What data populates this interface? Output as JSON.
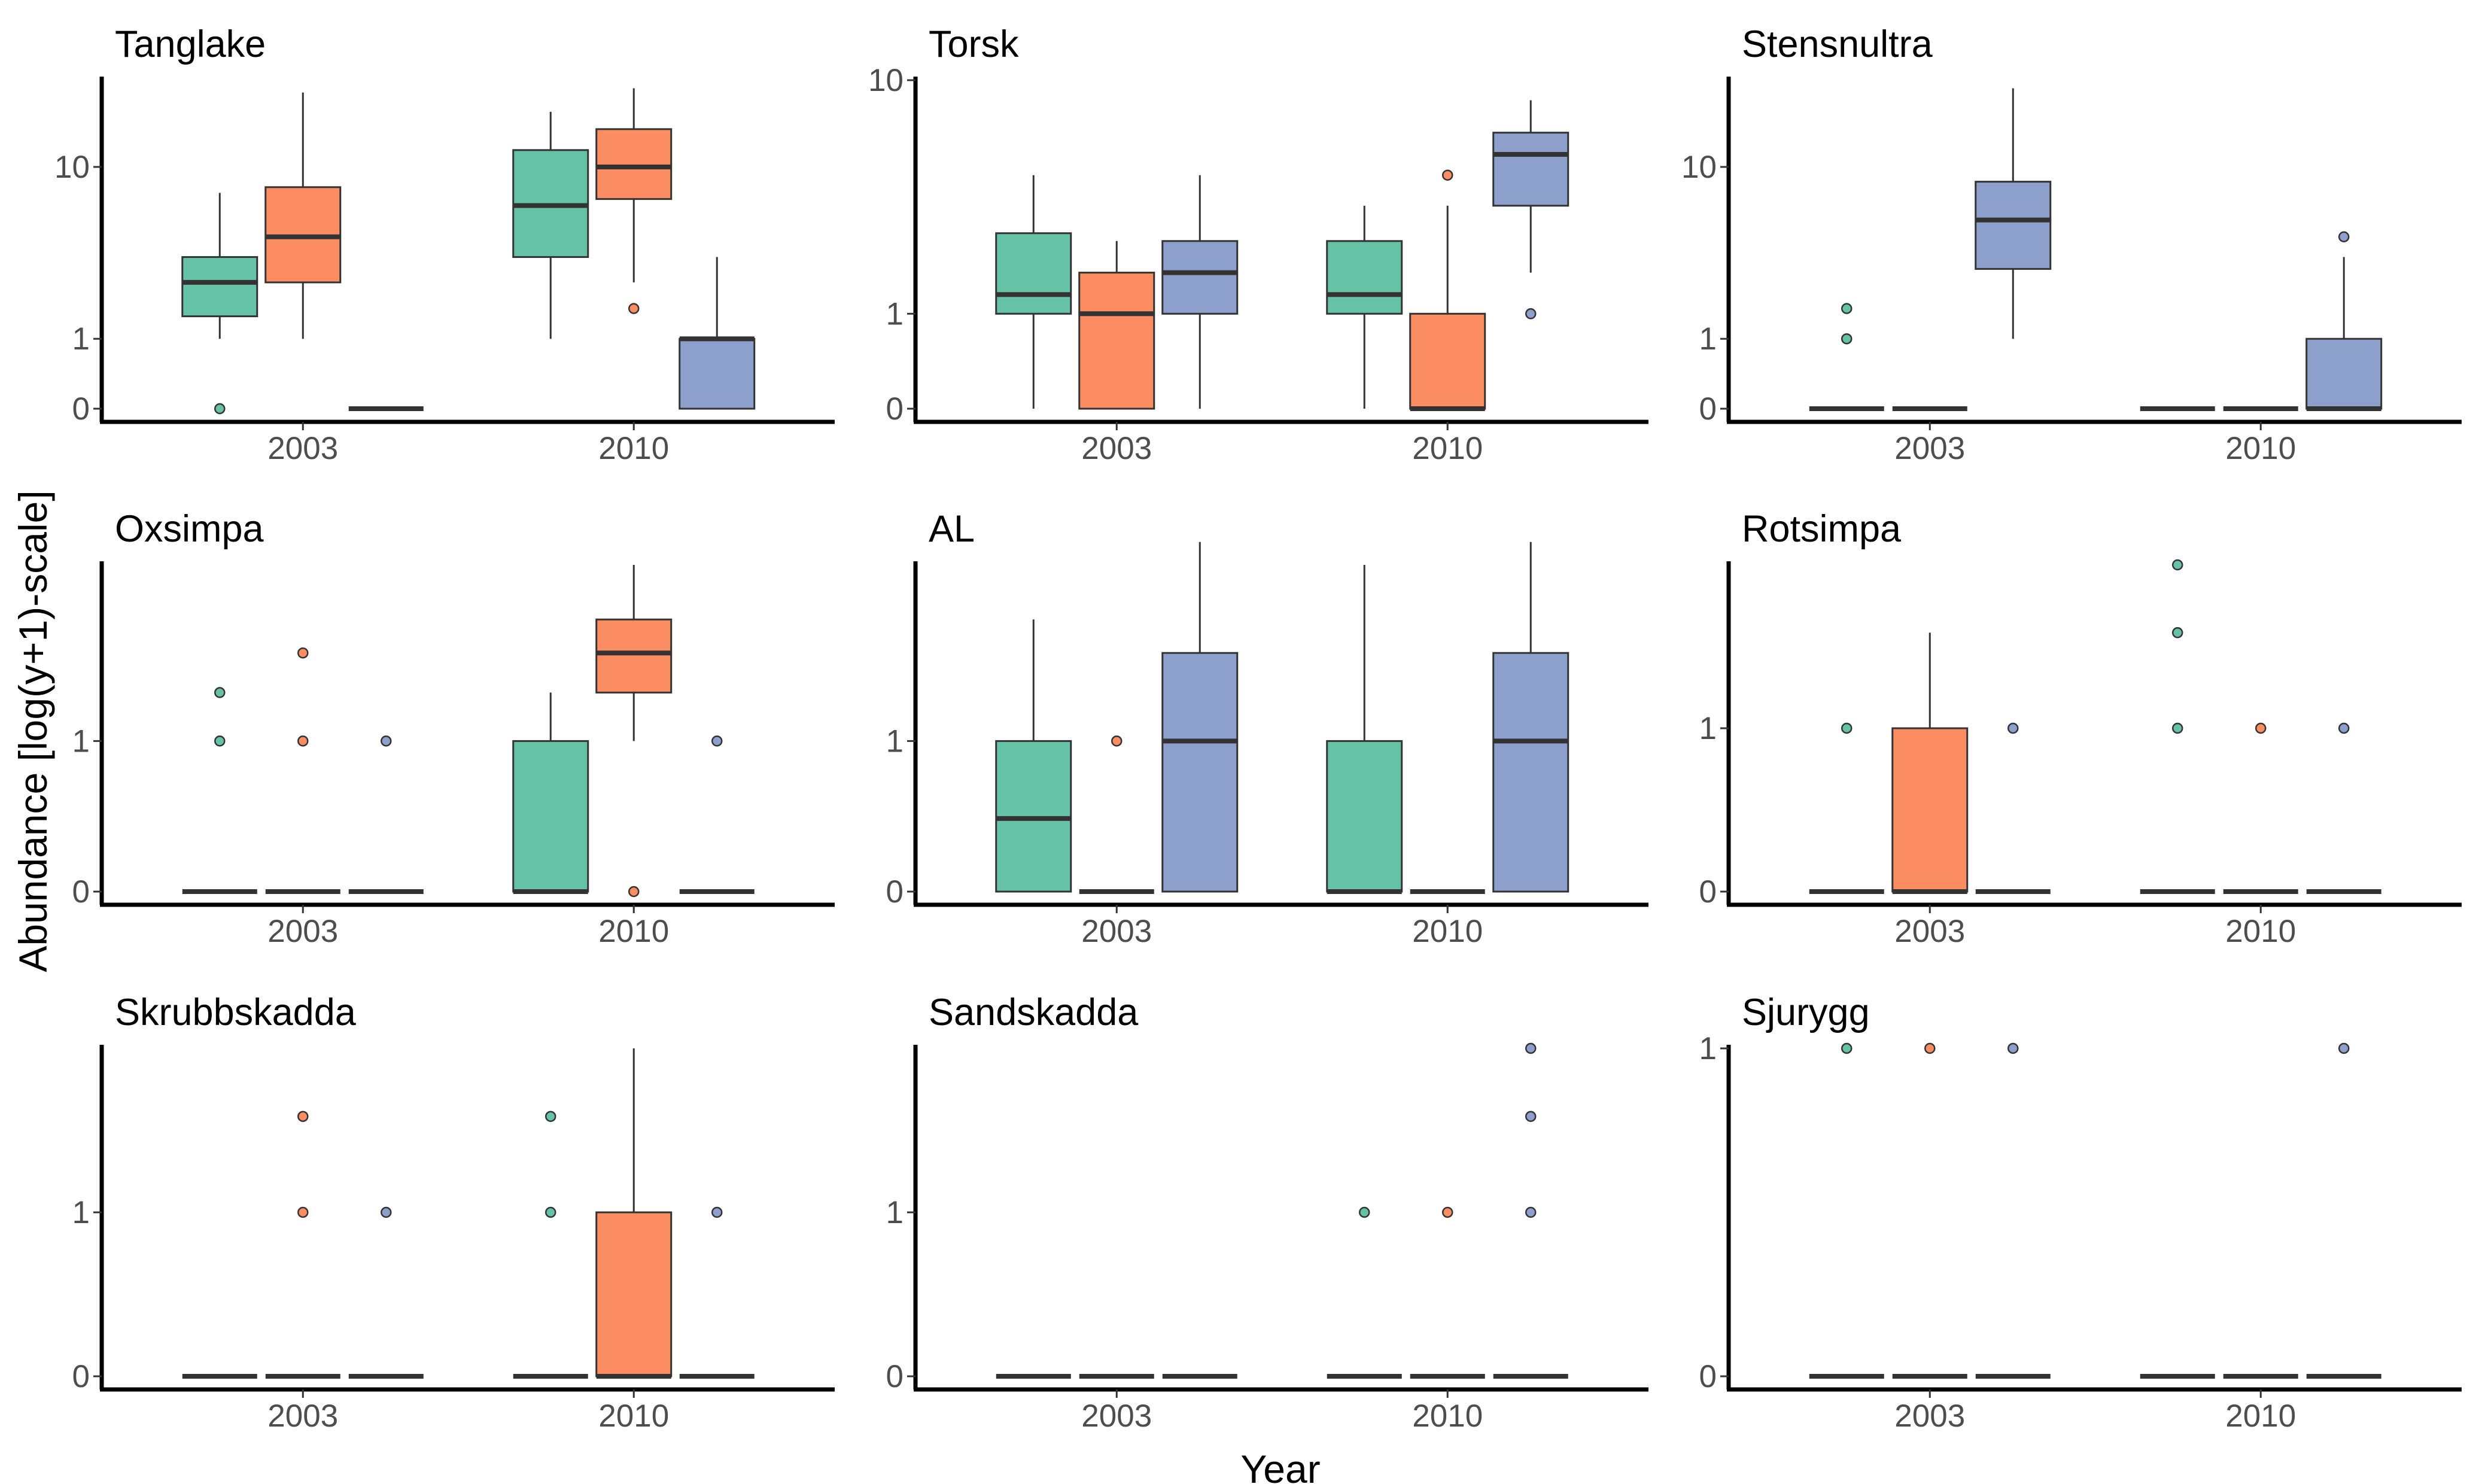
{
  "figure": {
    "ylabel": "Abundance [log(y+1)-scale]",
    "xlabel": "Year"
  },
  "colors": {
    "g1": "#66C2A5",
    "g2": "#FC8D62",
    "g3": "#8DA0CB"
  },
  "chart_data": [
    {
      "type": "box",
      "title": "Tanglake",
      "categories": [
        "2003",
        "2010"
      ],
      "yscale": "log1p",
      "ylim": [
        0,
        25
      ],
      "yticks": [
        "0",
        "1",
        "10"
      ],
      "groups": [
        {
          "year": "2003",
          "series": "g1",
          "min": 1,
          "q1": 1.5,
          "median": 2.5,
          "q3": 3.5,
          "max": 7.5,
          "outliers": [
            0
          ]
        },
        {
          "year": "2003",
          "series": "g2",
          "min": 1,
          "q1": 2.5,
          "median": 4.5,
          "q3": 8,
          "max": 22,
          "outliers": []
        },
        {
          "year": "2003",
          "series": "g3",
          "min": 0,
          "q1": 0,
          "median": 0,
          "q3": 0,
          "max": 0,
          "outliers": []
        },
        {
          "year": "2010",
          "series": "g1",
          "min": 1,
          "q1": 3.5,
          "median": 6.5,
          "q3": 12,
          "max": 18,
          "outliers": []
        },
        {
          "year": "2010",
          "series": "g2",
          "min": 2.5,
          "q1": 7,
          "median": 10,
          "q3": 15,
          "max": 23,
          "outliers": [
            1.7
          ]
        },
        {
          "year": "2010",
          "series": "g3",
          "min": 0,
          "q1": 0,
          "median": 1,
          "q3": 1,
          "max": 3.5,
          "outliers": []
        }
      ]
    },
    {
      "type": "box",
      "title": "Torsk",
      "categories": [
        "2003",
        "2010"
      ],
      "yscale": "log1p",
      "ylim": [
        0,
        10
      ],
      "yticks": [
        "0",
        "1",
        "10"
      ],
      "groups": [
        {
          "year": "2003",
          "series": "g1",
          "min": 0,
          "q1": 1,
          "median": 1.3,
          "q3": 2.6,
          "max": 4.5,
          "outliers": []
        },
        {
          "year": "2003",
          "series": "g2",
          "min": 0,
          "q1": 0,
          "median": 1,
          "q3": 1.7,
          "max": 2.4,
          "outliers": []
        },
        {
          "year": "2003",
          "series": "g3",
          "min": 0,
          "q1": 1,
          "median": 1.7,
          "q3": 2.4,
          "max": 4.5,
          "outliers": []
        },
        {
          "year": "2010",
          "series": "g1",
          "min": 0,
          "q1": 1,
          "median": 1.3,
          "q3": 2.4,
          "max": 3.4,
          "outliers": []
        },
        {
          "year": "2010",
          "series": "g2",
          "min": 0,
          "q1": 0,
          "median": 0,
          "q3": 1,
          "max": 3.4,
          "outliers": [
            4.5
          ]
        },
        {
          "year": "2010",
          "series": "g3",
          "min": 1.7,
          "q1": 3.4,
          "median": 5.4,
          "q3": 6.5,
          "max": 8.5,
          "outliers": [
            1
          ]
        }
      ]
    },
    {
      "type": "box",
      "title": "Stensnultra",
      "categories": [
        "2003",
        "2010"
      ],
      "yscale": "log1p",
      "ylim": [
        0,
        25
      ],
      "yticks": [
        "0",
        "1",
        "10"
      ],
      "groups": [
        {
          "year": "2003",
          "series": "g1",
          "min": 0,
          "q1": 0,
          "median": 0,
          "q3": 0,
          "max": 0,
          "outliers": [
            1,
            1.7
          ]
        },
        {
          "year": "2003",
          "series": "g2",
          "min": 0,
          "q1": 0,
          "median": 0,
          "q3": 0,
          "max": 0,
          "outliers": []
        },
        {
          "year": "2003",
          "series": "g3",
          "min": 1,
          "q1": 3,
          "median": 5.5,
          "q3": 8.5,
          "max": 23,
          "outliers": []
        },
        {
          "year": "2010",
          "series": "g1",
          "min": 0,
          "q1": 0,
          "median": 0,
          "q3": 0,
          "max": 0,
          "outliers": []
        },
        {
          "year": "2010",
          "series": "g2",
          "min": 0,
          "q1": 0,
          "median": 0,
          "q3": 0,
          "max": 0,
          "outliers": []
        },
        {
          "year": "2010",
          "series": "g3",
          "min": 0,
          "q1": 0,
          "median": 0,
          "q3": 1,
          "max": 3.5,
          "outliers": [
            4.5
          ]
        }
      ]
    },
    {
      "type": "box",
      "title": "Oxsimpa",
      "categories": [
        "2003",
        "2010"
      ],
      "yscale": "log1p",
      "ylim": [
        0,
        3.5
      ],
      "yticks": [
        "0",
        "1"
      ],
      "groups": [
        {
          "year": "2003",
          "series": "g1",
          "min": 0,
          "q1": 0,
          "median": 0,
          "q3": 0,
          "max": 0,
          "outliers": [
            1,
            1.5
          ]
        },
        {
          "year": "2003",
          "series": "g2",
          "min": 0,
          "q1": 0,
          "median": 0,
          "q3": 0,
          "max": 0,
          "outliers": [
            1,
            2
          ]
        },
        {
          "year": "2003",
          "series": "g3",
          "min": 0,
          "q1": 0,
          "median": 0,
          "q3": 0,
          "max": 0,
          "outliers": [
            1
          ]
        },
        {
          "year": "2010",
          "series": "g1",
          "min": 0,
          "q1": 0,
          "median": 0,
          "q3": 1,
          "max": 1.5,
          "outliers": []
        },
        {
          "year": "2010",
          "series": "g2",
          "min": 1,
          "q1": 1.5,
          "median": 2,
          "q3": 2.5,
          "max": 3.5,
          "outliers": [
            0
          ]
        },
        {
          "year": "2010",
          "series": "g3",
          "min": 0,
          "q1": 0,
          "median": 0,
          "q3": 0,
          "max": 0,
          "outliers": [
            1
          ]
        }
      ]
    },
    {
      "type": "box",
      "title": "AL",
      "categories": [
        "2003",
        "2010"
      ],
      "yscale": "log1p",
      "ylim": [
        0,
        3.5
      ],
      "yticks": [
        "0",
        "1"
      ],
      "groups": [
        {
          "year": "2003",
          "series": "g1",
          "min": 0,
          "q1": 0,
          "median": 0.4,
          "q3": 1,
          "max": 2.5,
          "outliers": []
        },
        {
          "year": "2003",
          "series": "g2",
          "min": 0,
          "q1": 0,
          "median": 0,
          "q3": 0,
          "max": 0,
          "outliers": [
            1
          ]
        },
        {
          "year": "2003",
          "series": "g3",
          "min": 0,
          "q1": 0,
          "median": 1,
          "q3": 2,
          "max": 4,
          "outliers": []
        },
        {
          "year": "2010",
          "series": "g1",
          "min": 0,
          "q1": 0,
          "median": 0,
          "q3": 1,
          "max": 3.5,
          "outliers": []
        },
        {
          "year": "2010",
          "series": "g2",
          "min": 0,
          "q1": 0,
          "median": 0,
          "q3": 0,
          "max": 0,
          "outliers": []
        },
        {
          "year": "2010",
          "series": "g3",
          "min": 0,
          "q1": 0,
          "median": 1,
          "q3": 2,
          "max": 4,
          "outliers": []
        }
      ]
    },
    {
      "type": "box",
      "title": "Rotsimpa",
      "categories": [
        "2003",
        "2010"
      ],
      "yscale": "log1p",
      "ylim": [
        0,
        3
      ],
      "yticks": [
        "0",
        "1"
      ],
      "groups": [
        {
          "year": "2003",
          "series": "g1",
          "min": 0,
          "q1": 0,
          "median": 0,
          "q3": 0,
          "max": 0,
          "outliers": [
            1
          ]
        },
        {
          "year": "2003",
          "series": "g2",
          "min": 0,
          "q1": 0,
          "median": 0,
          "q3": 1,
          "max": 2,
          "outliers": []
        },
        {
          "year": "2003",
          "series": "g3",
          "min": 0,
          "q1": 0,
          "median": 0,
          "q3": 0,
          "max": 0,
          "outliers": [
            1
          ]
        },
        {
          "year": "2010",
          "series": "g1",
          "min": 0,
          "q1": 0,
          "median": 0,
          "q3": 0,
          "max": 0,
          "outliers": [
            1,
            2,
            3
          ]
        },
        {
          "year": "2010",
          "series": "g2",
          "min": 0,
          "q1": 0,
          "median": 0,
          "q3": 0,
          "max": 0,
          "outliers": [
            1
          ]
        },
        {
          "year": "2010",
          "series": "g3",
          "min": 0,
          "q1": 0,
          "median": 0,
          "q3": 0,
          "max": 0,
          "outliers": [
            1
          ]
        }
      ]
    },
    {
      "type": "box",
      "title": "Skrubbskadda",
      "categories": [
        "2003",
        "2010"
      ],
      "yscale": "log1p",
      "ylim": [
        0,
        3
      ],
      "yticks": [
        "0",
        "1"
      ],
      "groups": [
        {
          "year": "2003",
          "series": "g1",
          "min": 0,
          "q1": 0,
          "median": 0,
          "q3": 0,
          "max": 0,
          "outliers": []
        },
        {
          "year": "2003",
          "series": "g2",
          "min": 0,
          "q1": 0,
          "median": 0,
          "q3": 0,
          "max": 0,
          "outliers": [
            1,
            2
          ]
        },
        {
          "year": "2003",
          "series": "g3",
          "min": 0,
          "q1": 0,
          "median": 0,
          "q3": 0,
          "max": 0,
          "outliers": [
            1
          ]
        },
        {
          "year": "2010",
          "series": "g1",
          "min": 0,
          "q1": 0,
          "median": 0,
          "q3": 0,
          "max": 0,
          "outliers": [
            1,
            2
          ]
        },
        {
          "year": "2010",
          "series": "g2",
          "min": 0,
          "q1": 0,
          "median": 0,
          "q3": 1,
          "max": 3,
          "outliers": []
        },
        {
          "year": "2010",
          "series": "g3",
          "min": 0,
          "q1": 0,
          "median": 0,
          "q3": 0,
          "max": 0,
          "outliers": [
            1
          ]
        }
      ]
    },
    {
      "type": "box",
      "title": "Sandskadda",
      "categories": [
        "2003",
        "2010"
      ],
      "yscale": "log1p",
      "ylim": [
        0,
        3
      ],
      "yticks": [
        "0",
        "1"
      ],
      "groups": [
        {
          "year": "2003",
          "series": "g1",
          "min": 0,
          "q1": 0,
          "median": 0,
          "q3": 0,
          "max": 0,
          "outliers": []
        },
        {
          "year": "2003",
          "series": "g2",
          "min": 0,
          "q1": 0,
          "median": 0,
          "q3": 0,
          "max": 0,
          "outliers": []
        },
        {
          "year": "2003",
          "series": "g3",
          "min": 0,
          "q1": 0,
          "median": 0,
          "q3": 0,
          "max": 0,
          "outliers": []
        },
        {
          "year": "2010",
          "series": "g1",
          "min": 0,
          "q1": 0,
          "median": 0,
          "q3": 0,
          "max": 0,
          "outliers": [
            1
          ]
        },
        {
          "year": "2010",
          "series": "g2",
          "min": 0,
          "q1": 0,
          "median": 0,
          "q3": 0,
          "max": 0,
          "outliers": [
            1
          ]
        },
        {
          "year": "2010",
          "series": "g3",
          "min": 0,
          "q1": 0,
          "median": 0,
          "q3": 0,
          "max": 0,
          "outliers": [
            1,
            2,
            3
          ]
        }
      ]
    },
    {
      "type": "box",
      "title": "Sjurygg",
      "categories": [
        "2003",
        "2010"
      ],
      "yscale": "log1p",
      "ylim": [
        0,
        1
      ],
      "yticks": [
        "0",
        "1"
      ],
      "groups": [
        {
          "year": "2003",
          "series": "g1",
          "min": 0,
          "q1": 0,
          "median": 0,
          "q3": 0,
          "max": 0,
          "outliers": [
            1
          ]
        },
        {
          "year": "2003",
          "series": "g2",
          "min": 0,
          "q1": 0,
          "median": 0,
          "q3": 0,
          "max": 0,
          "outliers": [
            1
          ]
        },
        {
          "year": "2003",
          "series": "g3",
          "min": 0,
          "q1": 0,
          "median": 0,
          "q3": 0,
          "max": 0,
          "outliers": [
            1
          ]
        },
        {
          "year": "2010",
          "series": "g1",
          "min": 0,
          "q1": 0,
          "median": 0,
          "q3": 0,
          "max": 0,
          "outliers": []
        },
        {
          "year": "2010",
          "series": "g2",
          "min": 0,
          "q1": 0,
          "median": 0,
          "q3": 0,
          "max": 0,
          "outliers": []
        },
        {
          "year": "2010",
          "series": "g3",
          "min": 0,
          "q1": 0,
          "median": 0,
          "q3": 0,
          "max": 0,
          "outliers": [
            1
          ]
        }
      ]
    }
  ]
}
